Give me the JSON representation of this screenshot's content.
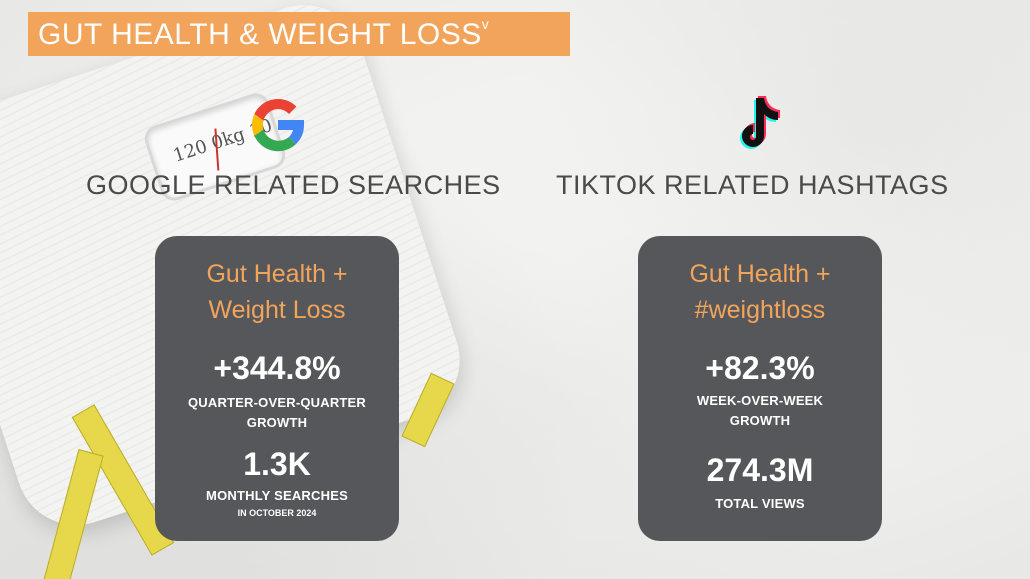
{
  "header": {
    "title": "GUT HEALTH & WEIGHT LOSS",
    "title_mark": "v"
  },
  "colors": {
    "accent": "#f2a45b",
    "card_bg": "#56575a",
    "heading_text": "#4a4a4a"
  },
  "google": {
    "logo_icon": "google-logo-icon",
    "heading": "GOOGLE RELATED SEARCHES",
    "card": {
      "title_line1": "Gut Health +",
      "title_line2": "Weight Loss",
      "stat1_value": "+344.8%",
      "stat1_label_line1": "QUARTER-OVER-QUARTER",
      "stat1_label_line2": "GROWTH",
      "stat2_value": "1.3K",
      "stat2_label": "MONTHLY SEARCHES",
      "stat2_sublabel": "IN OCTOBER 2024"
    }
  },
  "tiktok": {
    "logo_icon": "tiktok-logo-icon",
    "heading": "TIKTOK RELATED HASHTAGS",
    "card": {
      "title_line1": "Gut Health +",
      "title_line2": "#weightloss",
      "stat1_value": "+82.3%",
      "stat1_label_line1": "WEEK-OVER-WEEK",
      "stat1_label_line2": "GROWTH",
      "stat2_value": "274.3M",
      "stat2_label": "TOTAL VIEWS"
    }
  },
  "background": {
    "scale_dial_text": "120  0kg  10"
  }
}
